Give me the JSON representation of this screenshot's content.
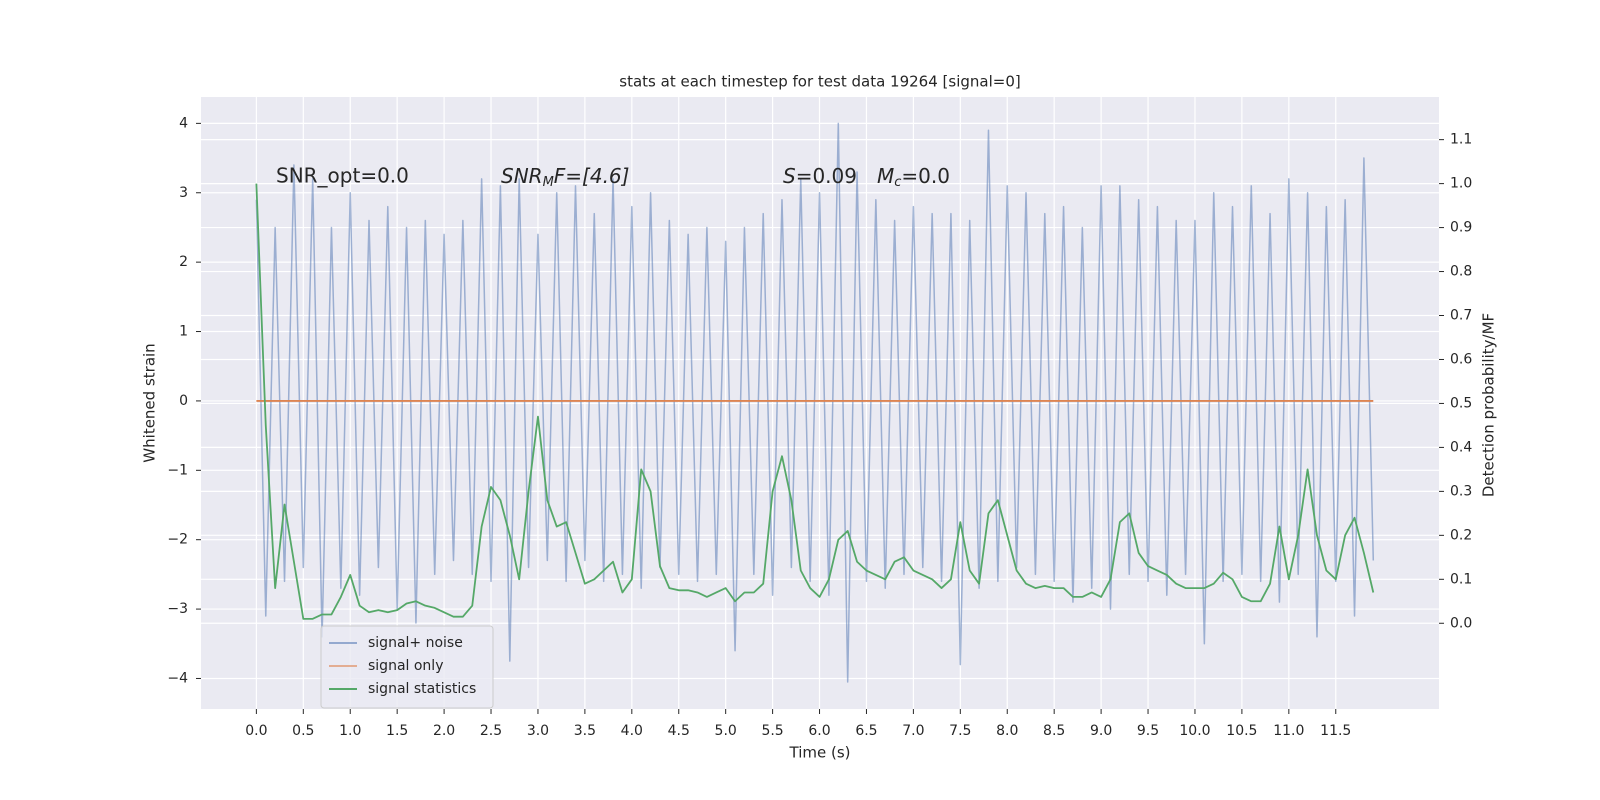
{
  "chart_data": {
    "type": "line",
    "title": "stats at each timestep for test data 19264 [signal=0]",
    "x_label": "Time (s)",
    "y_label": "Whitened strain",
    "y2_label": "Detection probability/MF",
    "annotations": [
      [
        "SNR_opt=0.0"
      ],
      [
        "SNR",
        "M",
        "F=[4.6]"
      ],
      [
        "S",
        "=0.09",
        "M",
        "c",
        "=0.0"
      ]
    ],
    "x": [
      0.0,
      0.1,
      0.2,
      0.3,
      0.4,
      0.5,
      0.6,
      0.7,
      0.8,
      0.9,
      1.0,
      1.1,
      1.2,
      1.3,
      1.4,
      1.5,
      1.6,
      1.7,
      1.8,
      1.9,
      2.0,
      2.1,
      2.2,
      2.3,
      2.4,
      2.5,
      2.6,
      2.7,
      2.8,
      2.9,
      3.0,
      3.1,
      3.2,
      3.3,
      3.4,
      3.5,
      3.6,
      3.7,
      3.8,
      3.9,
      4.0,
      4.1,
      4.2,
      4.3,
      4.4,
      4.5,
      4.6,
      4.7,
      4.8,
      4.9,
      5.0,
      5.1,
      5.2,
      5.3,
      5.4,
      5.5,
      5.6,
      5.7,
      5.8,
      5.9,
      6.0,
      6.1,
      6.2,
      6.3,
      6.4,
      6.5,
      6.6,
      6.7,
      6.8,
      6.9,
      7.0,
      7.1,
      7.2,
      7.3,
      7.4,
      7.5,
      7.6,
      7.7,
      7.8,
      7.9,
      8.0,
      8.1,
      8.2,
      8.3,
      8.4,
      8.5,
      8.6,
      8.7,
      8.8,
      8.9,
      9.0,
      9.1,
      9.2,
      9.3,
      9.4,
      9.5,
      9.6,
      9.7,
      9.8,
      9.9,
      10.0,
      10.1,
      10.2,
      10.3,
      10.4,
      10.5,
      10.6,
      10.7,
      10.8,
      10.9,
      11.0,
      11.1,
      11.2,
      11.3,
      11.4,
      11.5,
      11.6,
      11.7,
      11.8,
      11.9
    ],
    "series": [
      {
        "name": "signal+ noise",
        "color": "#4c72b0",
        "values": [
          2.9,
          -3.1,
          2.5,
          -2.6,
          3.4,
          -2.4,
          3.2,
          -3.4,
          2.5,
          -2.7,
          3.0,
          -2.8,
          2.6,
          -2.4,
          2.8,
          -3.0,
          2.5,
          -3.2,
          2.6,
          -2.5,
          2.4,
          -2.3,
          2.6,
          -2.5,
          3.2,
          -2.6,
          3.1,
          -3.75,
          3.2,
          -2.4,
          2.4,
          -2.3,
          3.0,
          -2.6,
          3.1,
          -2.3,
          2.7,
          -2.6,
          3.2,
          -2.5,
          2.8,
          -2.7,
          3.0,
          -2.4,
          2.6,
          -2.5,
          2.4,
          -2.6,
          2.5,
          -2.5,
          2.3,
          -3.6,
          2.5,
          -2.5,
          2.7,
          -2.8,
          2.9,
          -2.4,
          3.2,
          -2.6,
          3.0,
          -2.8,
          4.0,
          -4.05,
          3.3,
          -2.6,
          2.9,
          -2.7,
          2.6,
          -2.5,
          2.8,
          -2.4,
          2.7,
          -2.6,
          2.7,
          -3.8,
          2.6,
          -2.7,
          3.9,
          -2.6,
          3.1,
          -2.4,
          3.0,
          -2.5,
          2.7,
          -2.6,
          2.8,
          -2.9,
          2.5,
          -2.7,
          3.1,
          -3.0,
          3.1,
          -2.5,
          2.9,
          -2.6,
          2.8,
          -2.8,
          2.6,
          -2.5,
          2.6,
          -3.5,
          3.0,
          -2.6,
          2.8,
          -2.5,
          3.1,
          -2.6,
          2.7,
          -2.9,
          3.2,
          -2.5,
          3.0,
          -3.4,
          2.8,
          -2.6,
          2.9,
          -3.1,
          3.5,
          -2.3
        ]
      },
      {
        "name": "signal only",
        "color": "#dd8452",
        "values": [
          0,
          0,
          0,
          0,
          0,
          0,
          0,
          0,
          0,
          0,
          0,
          0,
          0,
          0,
          0,
          0,
          0,
          0,
          0,
          0,
          0,
          0,
          0,
          0,
          0,
          0,
          0,
          0,
          0,
          0,
          0,
          0,
          0,
          0,
          0,
          0,
          0,
          0,
          0,
          0,
          0,
          0,
          0,
          0,
          0,
          0,
          0,
          0,
          0,
          0,
          0,
          0,
          0,
          0,
          0,
          0,
          0,
          0,
          0,
          0,
          0,
          0,
          0,
          0,
          0,
          0,
          0,
          0,
          0,
          0,
          0,
          0,
          0,
          0,
          0,
          0,
          0,
          0,
          0,
          0,
          0,
          0,
          0,
          0,
          0,
          0,
          0,
          0,
          0,
          0,
          0,
          0,
          0,
          0,
          0,
          0,
          0,
          0,
          0,
          0,
          0,
          0,
          0,
          0,
          0,
          0,
          0,
          0,
          0,
          0,
          0,
          0,
          0,
          0,
          0,
          0,
          0,
          0,
          0,
          0
        ]
      },
      {
        "name": "signal statistics",
        "color": "#55a868",
        "axis": "y2",
        "values": [
          1.0,
          0.45,
          0.08,
          0.27,
          0.14,
          0.01,
          0.01,
          0.02,
          0.02,
          0.06,
          0.11,
          0.04,
          0.025,
          0.03,
          0.025,
          0.03,
          0.045,
          0.05,
          0.04,
          0.035,
          0.025,
          0.015,
          0.015,
          0.04,
          0.22,
          0.31,
          0.28,
          0.2,
          0.1,
          0.3,
          0.47,
          0.28,
          0.22,
          0.23,
          0.16,
          0.09,
          0.1,
          0.12,
          0.14,
          0.07,
          0.1,
          0.35,
          0.3,
          0.13,
          0.08,
          0.075,
          0.075,
          0.07,
          0.06,
          0.07,
          0.08,
          0.05,
          0.07,
          0.07,
          0.09,
          0.3,
          0.38,
          0.28,
          0.12,
          0.08,
          0.06,
          0.1,
          0.19,
          0.21,
          0.14,
          0.12,
          0.11,
          0.1,
          0.14,
          0.15,
          0.12,
          0.11,
          0.1,
          0.08,
          0.1,
          0.23,
          0.12,
          0.09,
          0.25,
          0.28,
          0.2,
          0.12,
          0.09,
          0.08,
          0.085,
          0.08,
          0.08,
          0.06,
          0.06,
          0.07,
          0.06,
          0.1,
          0.23,
          0.25,
          0.16,
          0.13,
          0.12,
          0.11,
          0.09,
          0.08,
          0.08,
          0.08,
          0.09,
          0.115,
          0.1,
          0.06,
          0.05,
          0.05,
          0.09,
          0.22,
          0.1,
          0.2,
          0.35,
          0.2,
          0.12,
          0.1,
          0.2,
          0.24,
          0.16,
          0.07
        ]
      }
    ],
    "xlim": [
      -0.59,
      12.6
    ],
    "ylim": [
      -4.44,
      4.38
    ],
    "y2lim": [
      -0.195,
      1.197
    ],
    "xticks": [
      {
        "value": 0,
        "label": "0.0"
      },
      0.5,
      {
        "value": 1,
        "label": "1.0"
      },
      1.5,
      {
        "value": 2,
        "label": "2.0"
      },
      2.5,
      {
        "value": 3,
        "label": "3.0"
      },
      3.5,
      {
        "value": 4,
        "label": "4.0"
      },
      4.5,
      {
        "value": 5,
        "label": "5.0"
      },
      5.5,
      {
        "value": 6,
        "label": "6.0"
      },
      6.5,
      {
        "value": 7,
        "label": "7.0"
      },
      7.5,
      {
        "value": 8,
        "label": "8.0"
      },
      8.5,
      {
        "value": 9,
        "label": "9.0"
      },
      9.5,
      {
        "value": 10,
        "label": "10.0"
      },
      10.5,
      {
        "value": 11,
        "label": "11.0"
      },
      11.5
    ],
    "yticks": [
      {
        "value": -4,
        "label": "−4"
      },
      {
        "value": -3,
        "label": "−3"
      },
      {
        "value": -2,
        "label": "−2"
      },
      {
        "value": -1,
        "label": "−1"
      },
      0,
      1,
      2,
      3,
      4
    ],
    "y2ticks": [
      {
        "value": 0,
        "label": "0.0"
      },
      0.1,
      0.2,
      0.3,
      0.4,
      0.5,
      0.6,
      0.7,
      0.8,
      0.9,
      {
        "value": 1,
        "label": "1.0"
      },
      1.1
    ],
    "grid": true,
    "legend": "lower left",
    "background": "#eaeaf2"
  }
}
